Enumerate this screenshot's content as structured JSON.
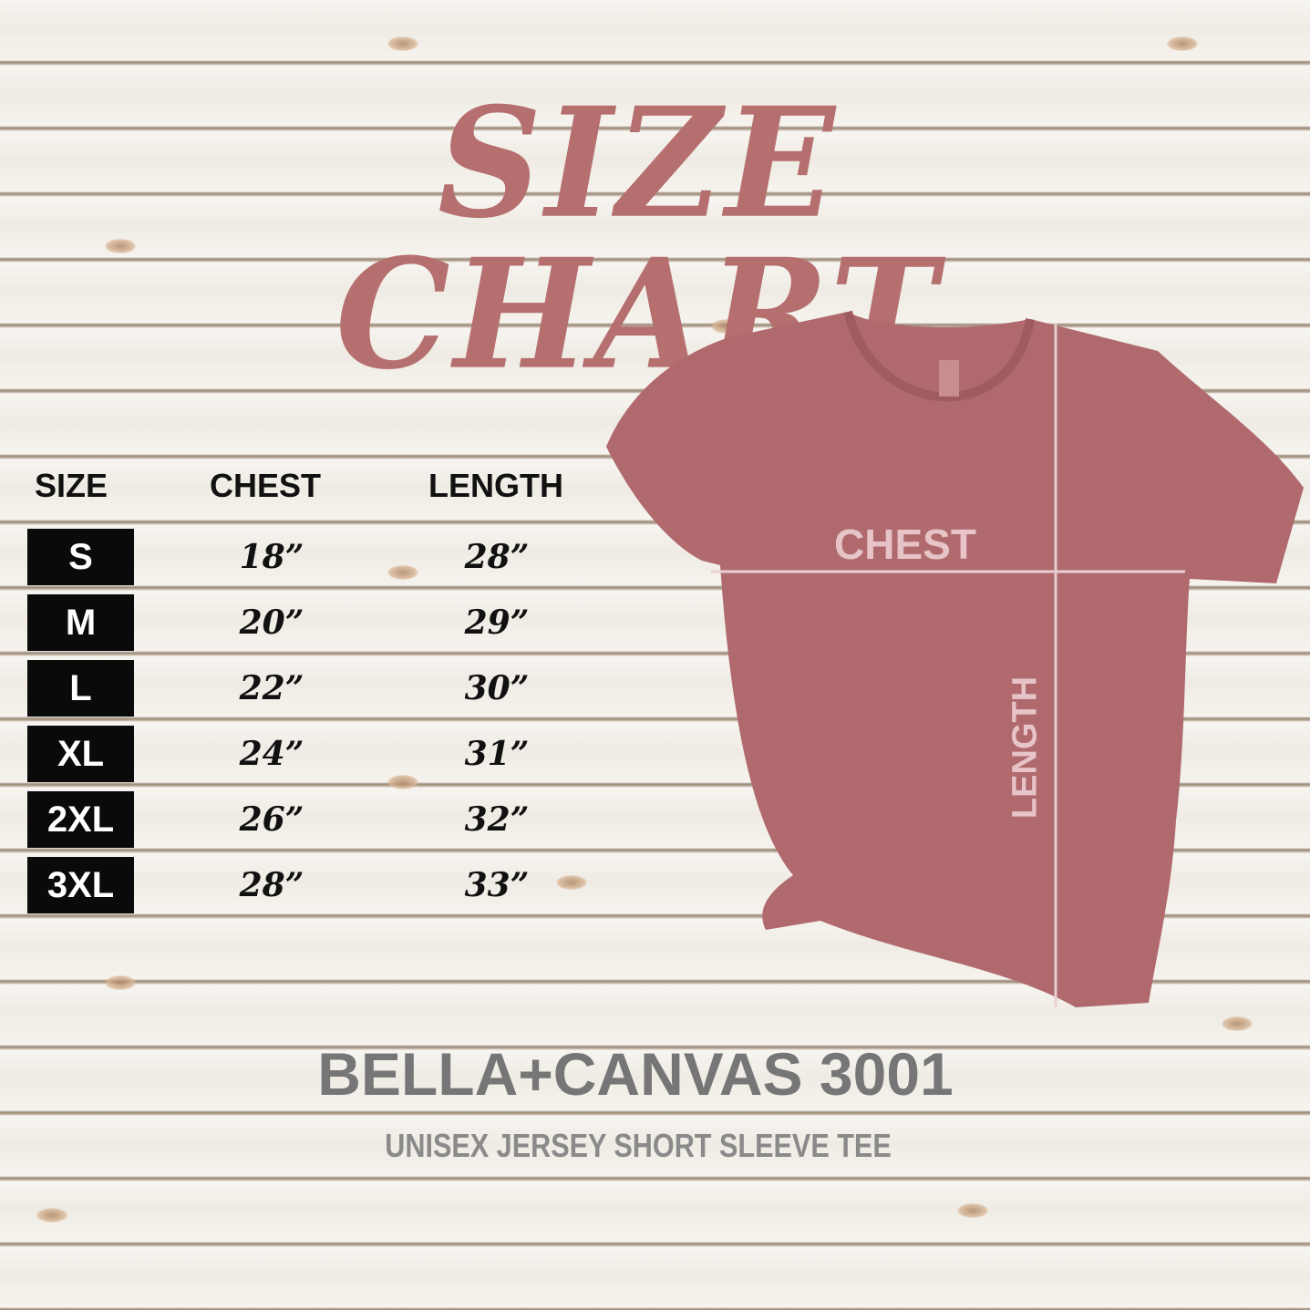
{
  "title": "SIZE CHART",
  "colors": {
    "title": "#b56f6f",
    "shirt": "#b06a6e",
    "size_box": "#0a0a0a",
    "overlay_text": "#e6c4c8"
  },
  "table": {
    "headers": [
      "SIZE",
      "CHEST",
      "LENGTH"
    ],
    "rows": [
      {
        "size": "S",
        "chest": "18”",
        "length": "28”"
      },
      {
        "size": "M",
        "chest": "20”",
        "length": "29”"
      },
      {
        "size": "L",
        "chest": "22”",
        "length": "30”"
      },
      {
        "size": "XL",
        "chest": "24”",
        "length": "31”"
      },
      {
        "size": "2XL",
        "chest": "26”",
        "length": "32”"
      },
      {
        "size": "3XL",
        "chest": "28”",
        "length": "33”"
      }
    ]
  },
  "shirt": {
    "chest_label": "CHEST",
    "length_label": "LENGTH"
  },
  "product": {
    "name": "BELLA+CANVAS 3001",
    "description": "UNISEX JERSEY SHORT SLEEVE TEE"
  }
}
